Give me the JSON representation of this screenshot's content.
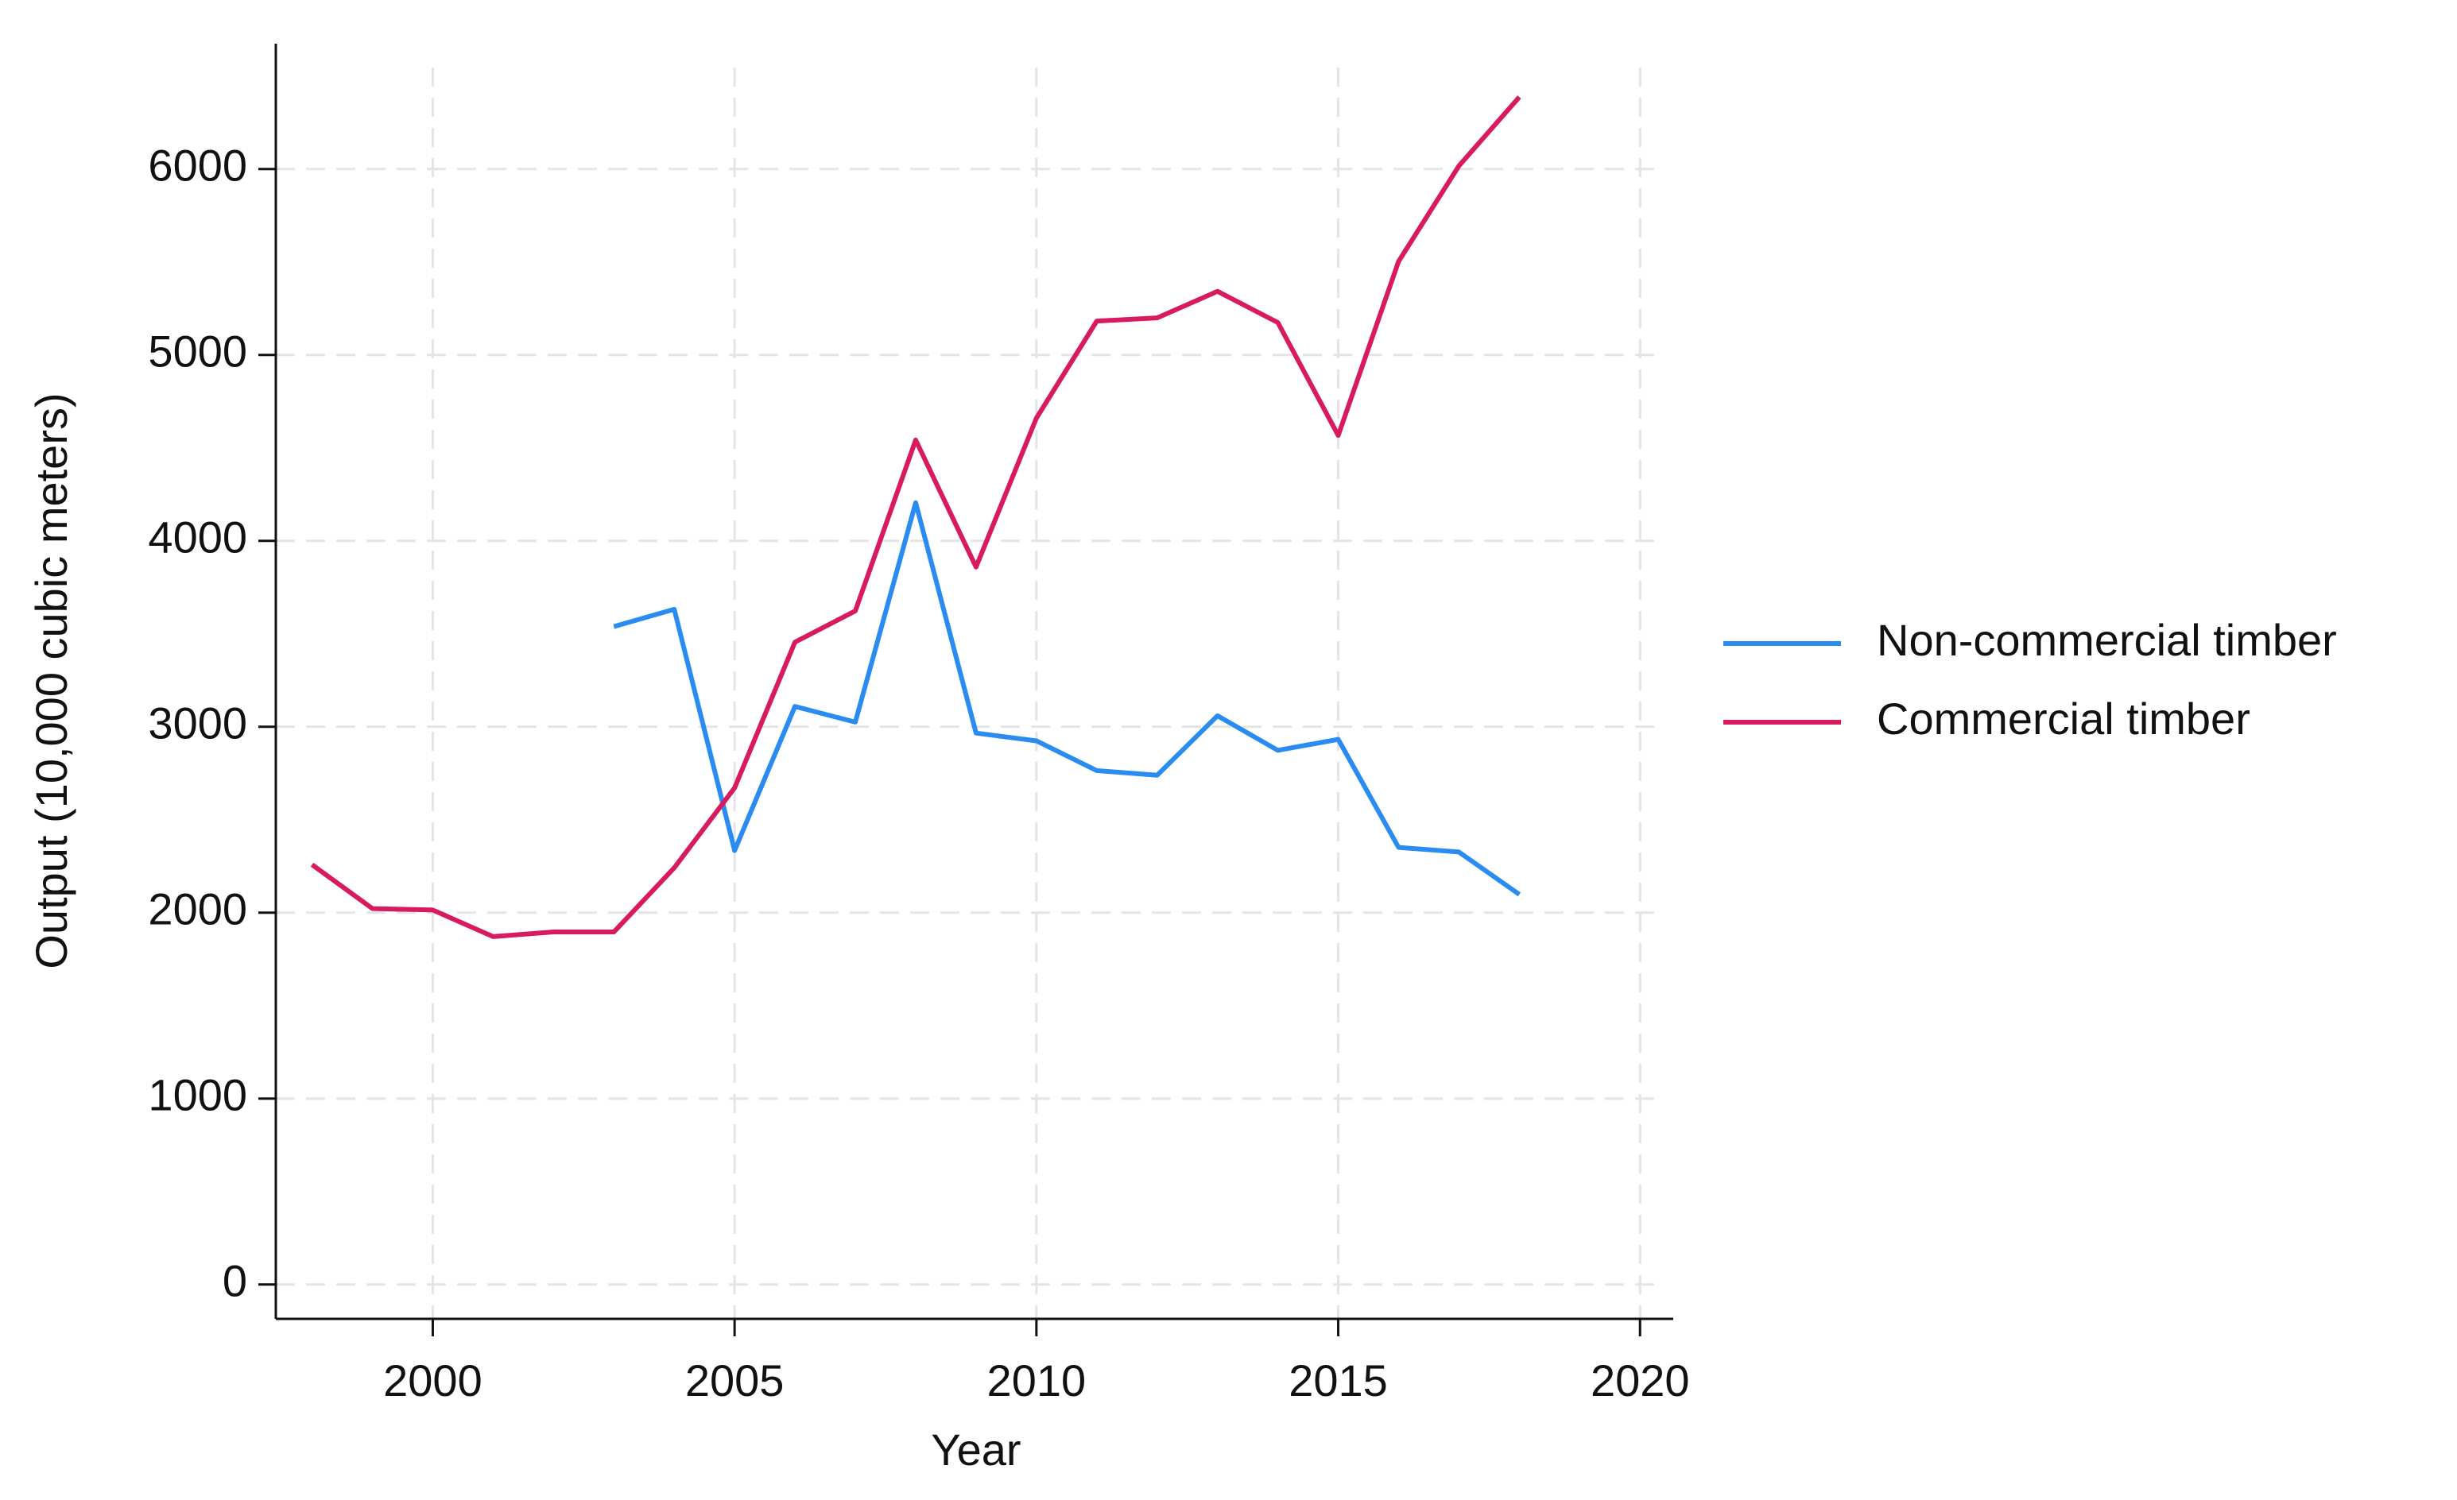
{
  "chart_data": {
    "type": "line",
    "x_label": "Year",
    "y_label": "Output (10,000 cubic meters)",
    "x": [
      1998,
      1999,
      2000,
      2001,
      2002,
      2003,
      2004,
      2005,
      2006,
      2007,
      2008,
      2009,
      2010,
      2011,
      2012,
      2013,
      2014,
      2015,
      2016,
      2017,
      2018
    ],
    "series": [
      {
        "name": "Non-commercial timber",
        "color": "#2a8cf0",
        "values": [
          null,
          null,
          null,
          null,
          null,
          3539,
          3632,
          2334,
          3109,
          3025,
          4205,
          2966,
          2924,
          2764,
          2739,
          3059,
          2873,
          2932,
          2351,
          2326,
          2098
        ]
      },
      {
        "name": "Commercial timber",
        "color": "#d81b60",
        "values": [
          2258,
          2022,
          2014,
          1871,
          1896,
          1896,
          2241,
          2671,
          3455,
          3623,
          4542,
          3859,
          4660,
          5182,
          5199,
          5342,
          5174,
          4567,
          5503,
          6017,
          6387
        ]
      }
    ],
    "xlim": [
      1997.4,
      2020.55
    ],
    "xticks": [
      2000,
      2005,
      2010,
      2015,
      2020
    ],
    "ylim": [
      -185,
      6674
    ],
    "yticks": [
      0,
      1000,
      2000,
      3000,
      4000,
      5000,
      6000
    ],
    "grid": true,
    "legend": "right"
  }
}
